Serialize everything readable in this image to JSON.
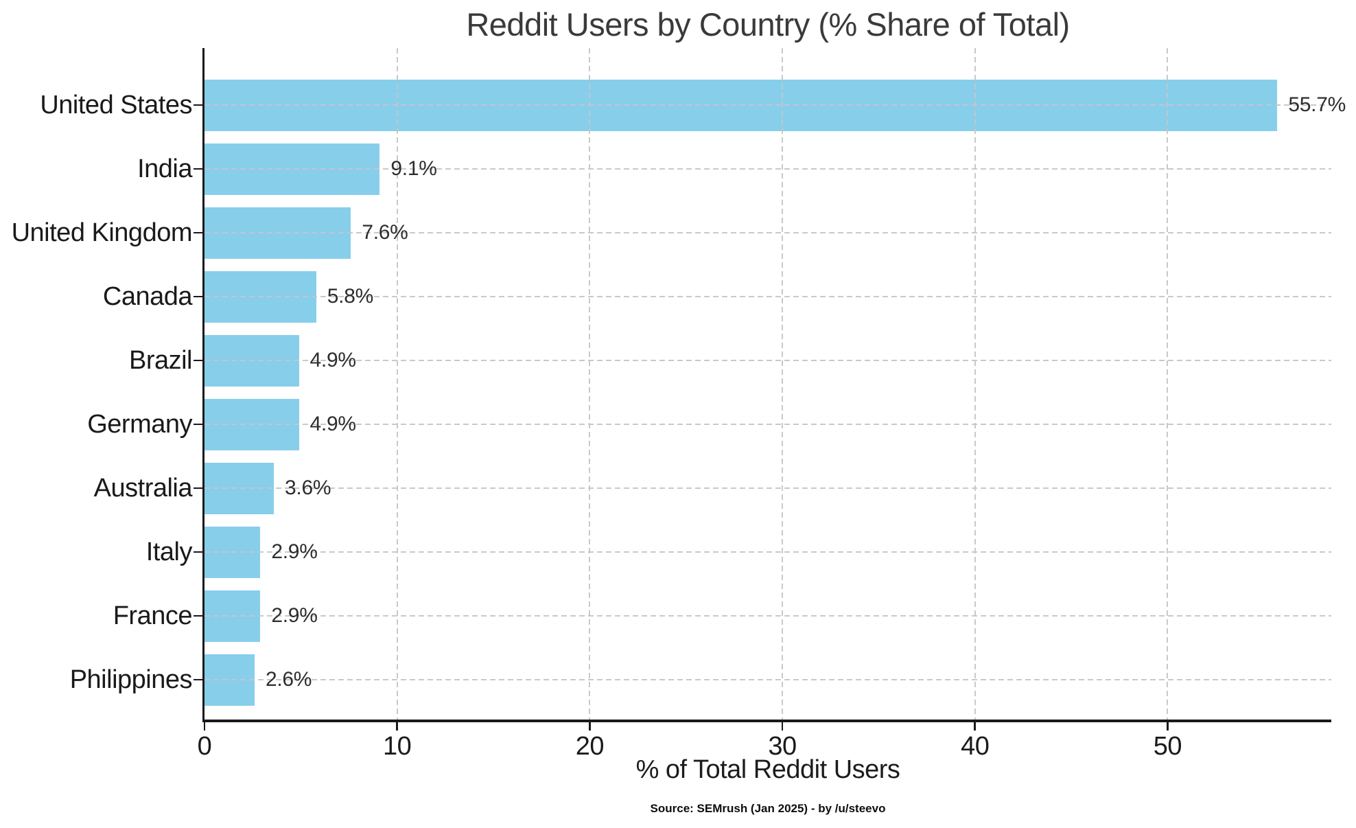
{
  "chart_data": {
    "type": "bar",
    "orientation": "horizontal",
    "title": "Reddit Users by Country (% Share of Total)",
    "xlabel": "% of Total Reddit Users",
    "source_note": "Source: SEMrush (Jan 2025) - by /u/steevo",
    "categories": [
      "United States",
      "India",
      "United Kingdom",
      "Canada",
      "Brazil",
      "Germany",
      "Australia",
      "Italy",
      "France",
      "Philippines"
    ],
    "values": [
      55.7,
      9.1,
      7.6,
      5.8,
      4.9,
      4.9,
      3.6,
      2.9,
      2.9,
      2.6
    ],
    "value_labels": [
      "55.7%",
      "9.1%",
      "7.6%",
      "5.8%",
      "4.9%",
      "4.9%",
      "3.6%",
      "2.9%",
      "2.9%",
      "2.6%"
    ],
    "xlim": [
      0,
      58.5
    ],
    "xticks": [
      0,
      10,
      20,
      30,
      40,
      50
    ],
    "grid": "dashed gridlines on both axes, drawn over bars",
    "legend": "none",
    "bar_color": "#87CEEB",
    "background_color": "#FFFFFF",
    "grid_color": "#C6C6C4",
    "axis_color": "#1A1A1A",
    "title_color": "#3A3A3A"
  }
}
